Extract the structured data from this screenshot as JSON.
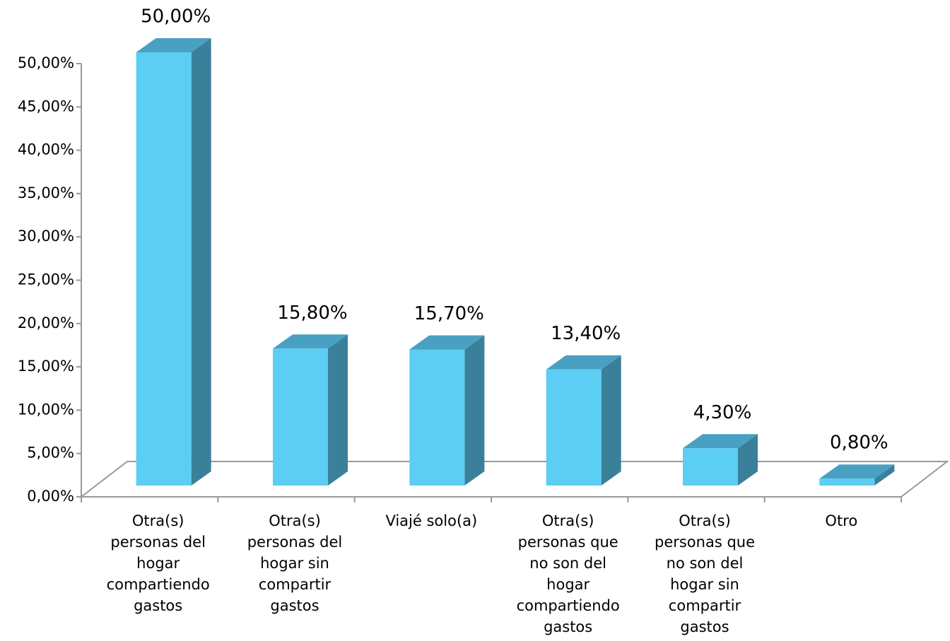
{
  "chart_data": {
    "type": "bar3d",
    "categories": [
      "Otra(s) personas del hogar compartiendo gastos",
      "Otra(s) personas del hogar sin compartir gastos",
      "Viajé solo(a)",
      "Otra(s) personas que no son del hogar compartiendo gastos",
      "Otra(s) personas que no son del hogar sin compartir gastos",
      "Otro"
    ],
    "values": [
      50,
      15.8,
      15.7,
      13.4,
      4.3,
      0.8
    ],
    "value_labels": [
      "50,00%",
      "15,80%",
      "15,70%",
      "13,40%",
      "4,30%",
      "0,80%"
    ],
    "color": "#5ccdf3",
    "ylim": [
      0,
      50
    ],
    "yticks": [
      {
        "value": 0,
        "label": "0,00%"
      },
      {
        "value": 5,
        "label": "5,00%"
      },
      {
        "value": 10,
        "label": "10,00%"
      },
      {
        "value": 15,
        "label": "15,00%"
      },
      {
        "value": 20,
        "label": "20,00%"
      },
      {
        "value": 25,
        "label": "25,00%"
      },
      {
        "value": 30,
        "label": "30,00%"
      },
      {
        "value": 35,
        "label": "35,00%"
      },
      {
        "value": 40,
        "label": "40,00%"
      },
      {
        "value": 45,
        "label": "45,00%"
      },
      {
        "value": 50,
        "label": "50,00%"
      }
    ]
  }
}
